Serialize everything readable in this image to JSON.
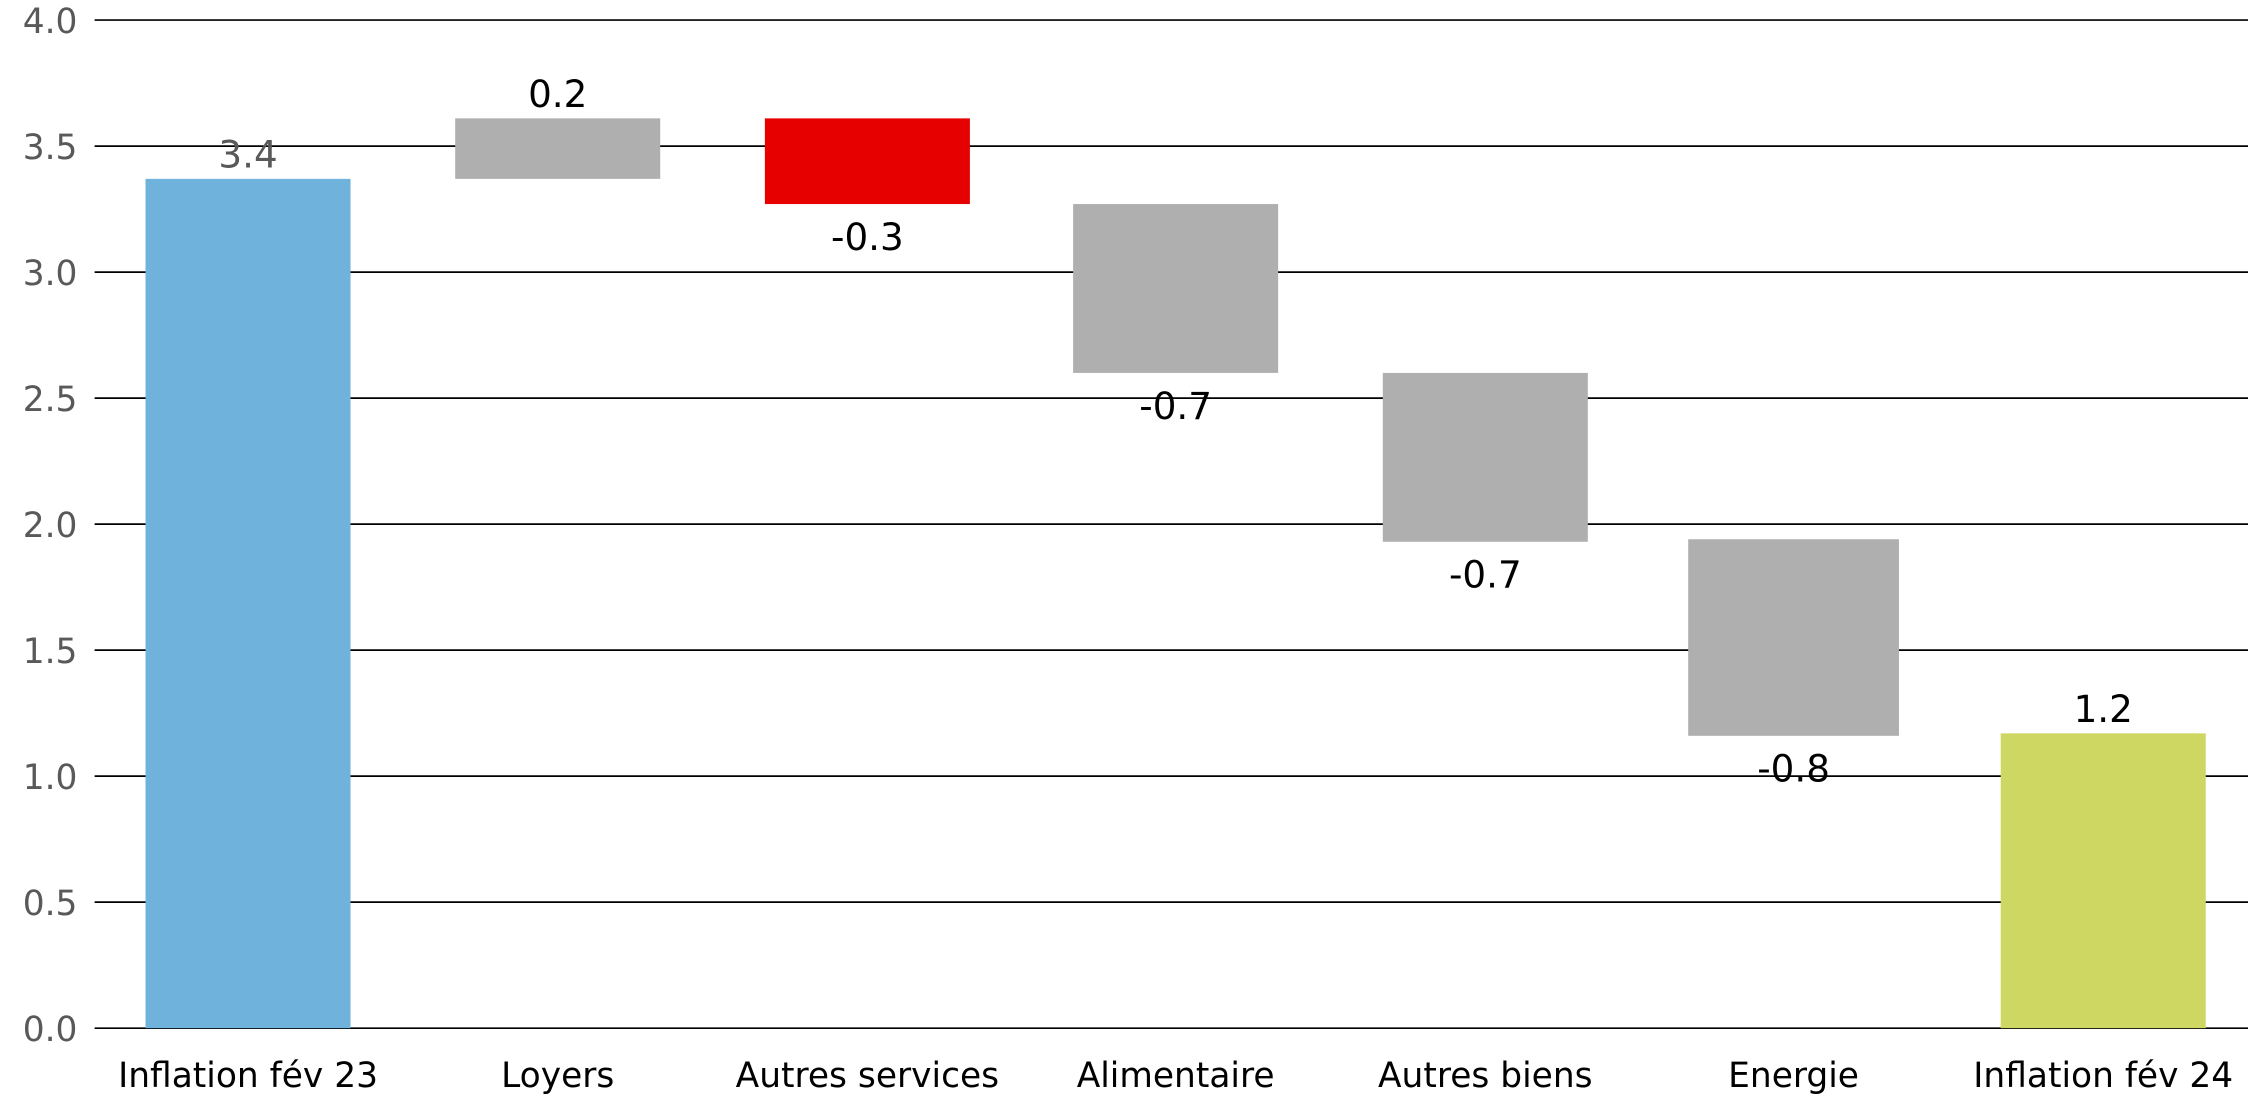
{
  "chart_data": {
    "type": "bar",
    "subtype": "waterfall",
    "title": "",
    "xlabel": "",
    "ylabel": "",
    "ylim": [
      0,
      4.0
    ],
    "ytick_step": 0.5,
    "grid": true,
    "legend": "none",
    "categories": [
      "Inflation fév 23",
      "Loyers",
      "Autres services",
      "Alimentaire",
      "Autres biens",
      "Energie",
      "Inflation fév 24"
    ],
    "bars": [
      {
        "kind": "total",
        "start": 0,
        "end": 3.37,
        "label": "3.4",
        "color": "#6fb3dd"
      },
      {
        "kind": "delta",
        "start": 3.37,
        "end": 3.61,
        "label": "0.2",
        "color": "#afafaf"
      },
      {
        "kind": "delta",
        "start": 3.61,
        "end": 3.27,
        "label": "-0.3",
        "color": "#e60000"
      },
      {
        "kind": "delta",
        "start": 3.27,
        "end": 2.6,
        "label": "-0.7",
        "color": "#afafaf"
      },
      {
        "kind": "delta",
        "start": 2.6,
        "end": 1.93,
        "label": "-0.7",
        "color": "#afafaf"
      },
      {
        "kind": "delta",
        "start": 1.94,
        "end": 1.16,
        "label": "-0.8",
        "color": "#afafaf"
      },
      {
        "kind": "total",
        "start": 0,
        "end": 1.17,
        "label": "1.2",
        "color": "#cfd763"
      }
    ],
    "tick_labels": [
      "0.0",
      "0.5",
      "1.0",
      "1.5",
      "2.0",
      "2.5",
      "3.0",
      "3.5",
      "4.0"
    ]
  }
}
